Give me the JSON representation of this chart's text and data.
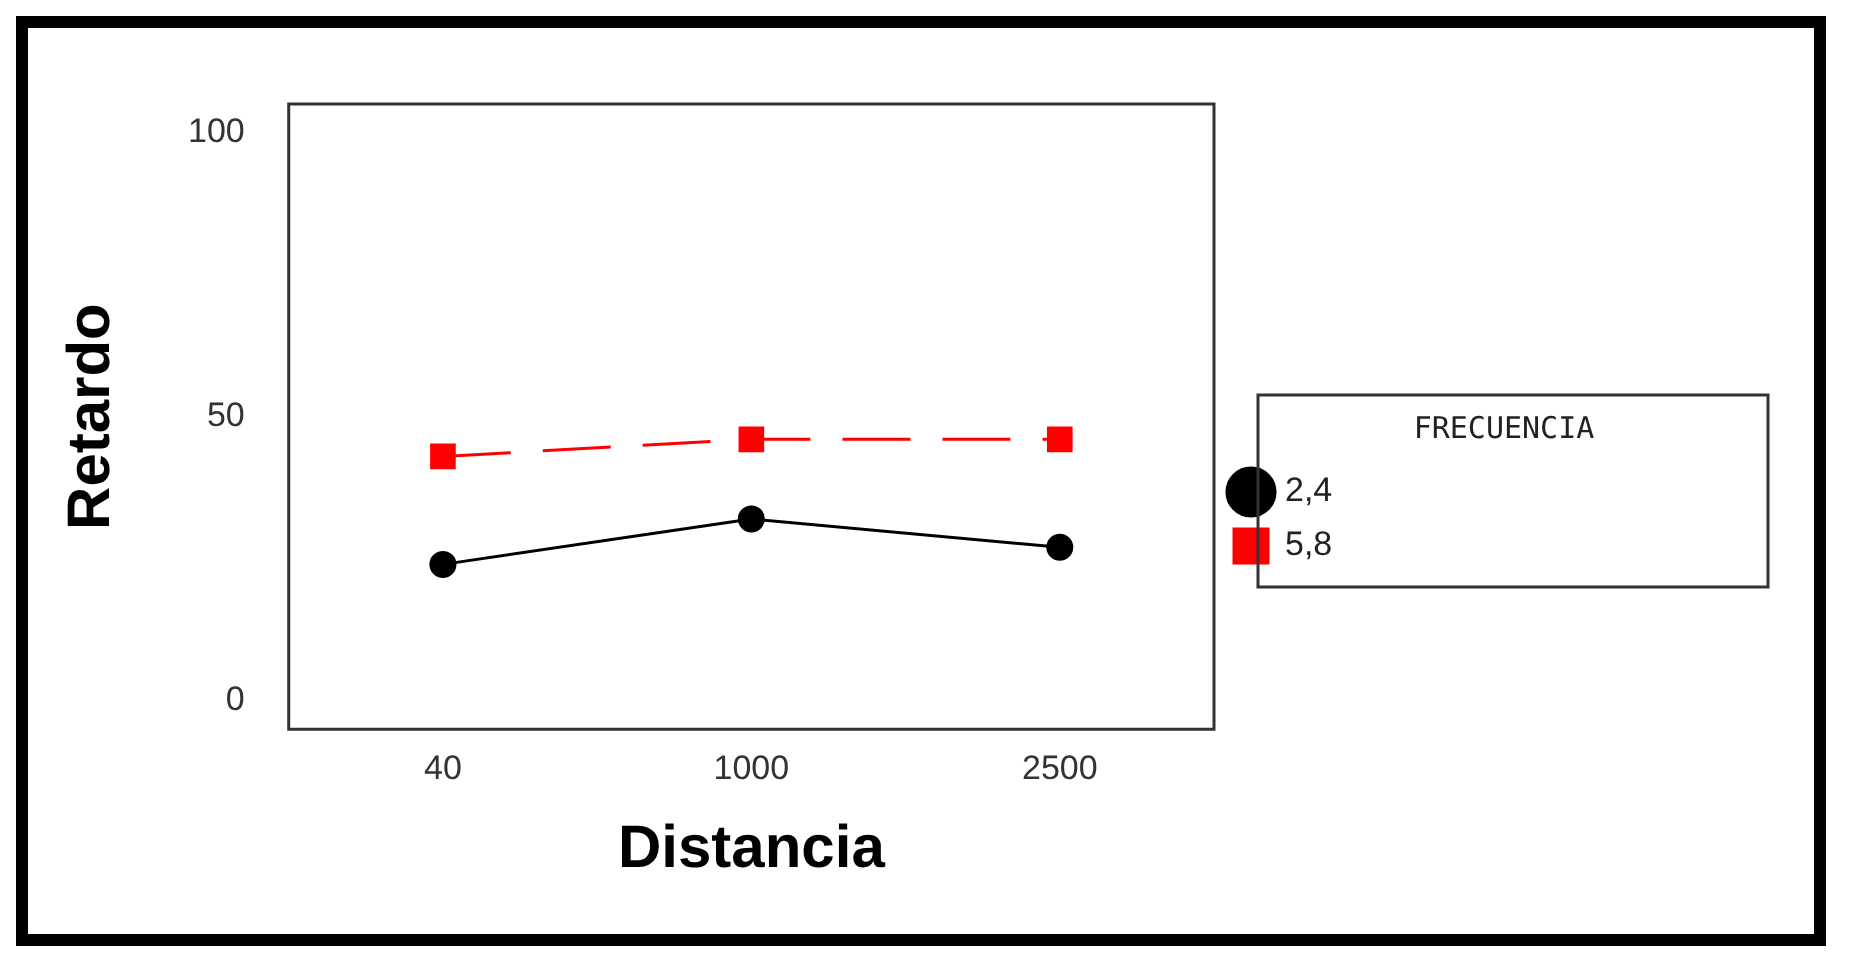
{
  "chart_data": {
    "type": "line",
    "xlabel": "Distancia",
    "ylabel": "Retardo",
    "legend_title": "FRECUENCIA",
    "categories": [
      "40",
      "1000",
      "2500"
    ],
    "series": [
      {
        "name": "2,4",
        "color": "#000000",
        "values": [
          24,
          32,
          27
        ],
        "marker": "circle",
        "line_style": "solid"
      },
      {
        "name": "5,8",
        "color": "#ff0000",
        "values": [
          43,
          46,
          46
        ],
        "marker": "square",
        "line_style": "dashed"
      }
    ],
    "ylim": [
      -5,
      105
    ],
    "yticks": [
      0,
      50,
      100
    ],
    "grid": false,
    "legend": "right"
  }
}
